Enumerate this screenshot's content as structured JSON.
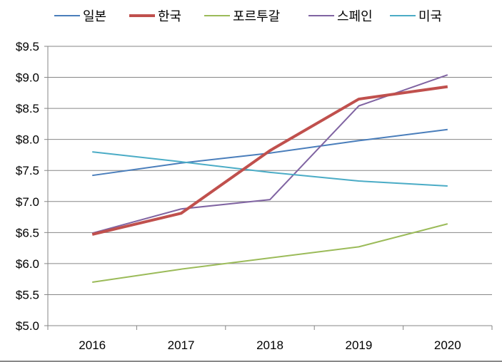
{
  "chart_data": {
    "type": "line",
    "title": "",
    "xlabel": "",
    "ylabel": "",
    "categories": [
      "2016",
      "2017",
      "2018",
      "2019",
      "2020"
    ],
    "ylim": [
      5.0,
      9.5
    ],
    "yticks": [
      "$9.5",
      "$9.0",
      "$8.5",
      "$8.0",
      "$7.5",
      "$7.0",
      "$6.5",
      "$6.0",
      "$5.5",
      "$5.0"
    ],
    "grid": true,
    "legend_position": "top",
    "series": [
      {
        "name": "일본",
        "color": "#4a7ebb",
        "values": [
          7.42,
          7.62,
          7.78,
          7.98,
          8.16
        ]
      },
      {
        "name": "한국",
        "color": "#c0504d",
        "values": [
          6.47,
          6.81,
          7.82,
          8.65,
          8.85
        ]
      },
      {
        "name": "포르투갈",
        "color": "#9bbb59",
        "values": [
          5.7,
          5.91,
          6.09,
          6.27,
          6.64
        ]
      },
      {
        "name": "스페인",
        "color": "#8064a2",
        "values": [
          6.49,
          6.88,
          7.03,
          8.54,
          9.04
        ]
      },
      {
        "name": "미국",
        "color": "#4bacc6",
        "values": [
          7.8,
          7.64,
          7.47,
          7.33,
          7.25
        ]
      }
    ]
  }
}
